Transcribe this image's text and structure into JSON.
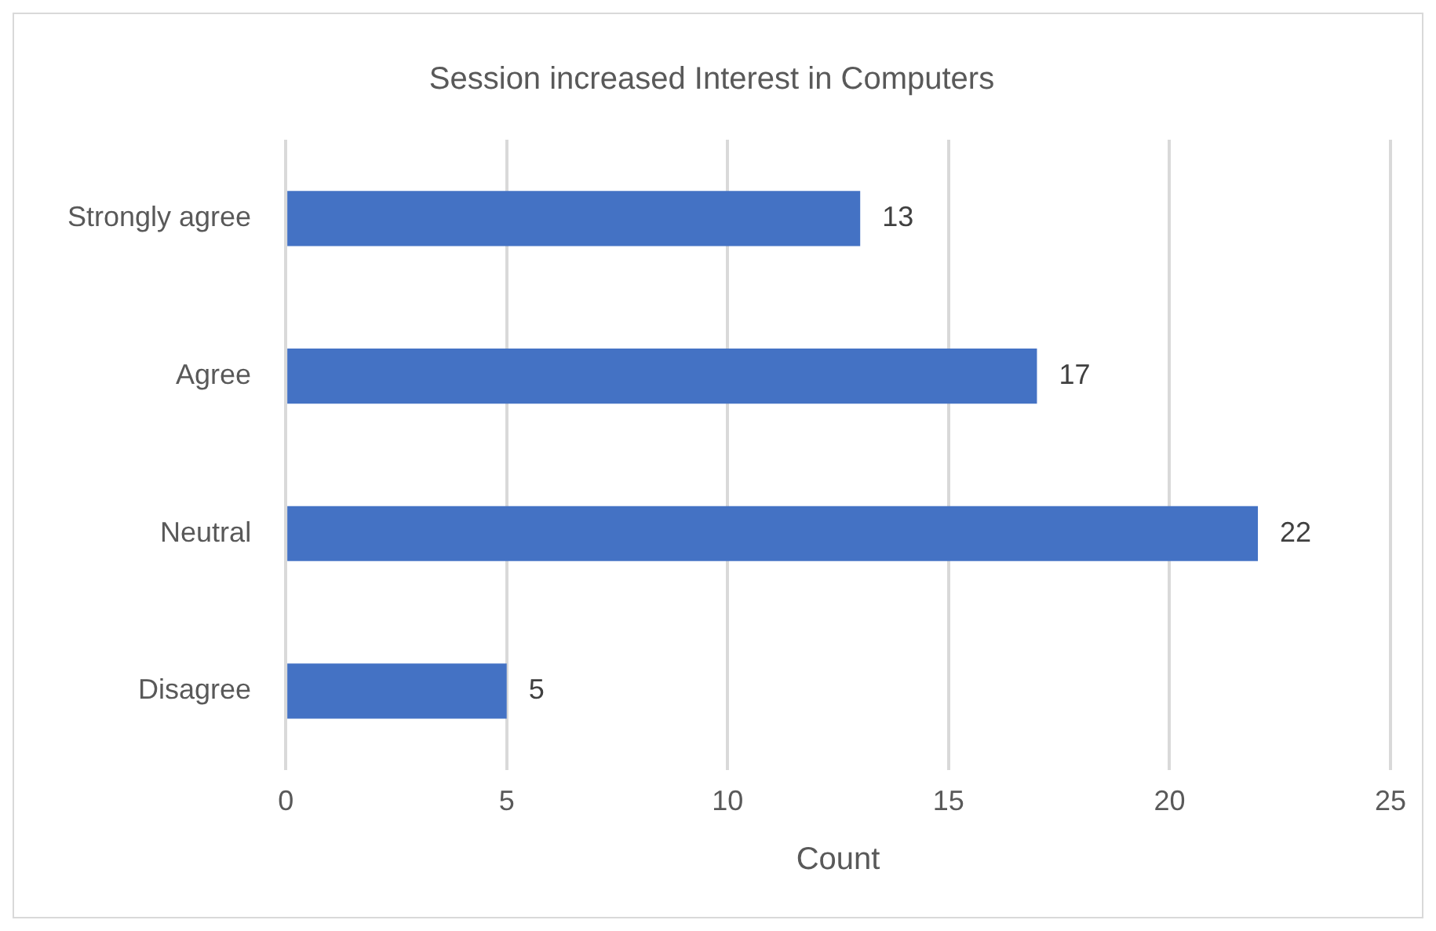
{
  "chart_data": {
    "type": "bar",
    "orientation": "horizontal",
    "title": "Session increased Interest in Computers",
    "xlabel": "Count",
    "categories": [
      "Strongly agree",
      "Agree",
      "Neutral",
      "Disagree"
    ],
    "values": [
      13,
      17,
      22,
      5
    ],
    "color": "#4472c4",
    "xlim": [
      0,
      25
    ],
    "xticks": [
      0,
      5,
      10,
      15,
      20,
      25
    ],
    "grid": "x",
    "data_labels": true
  }
}
